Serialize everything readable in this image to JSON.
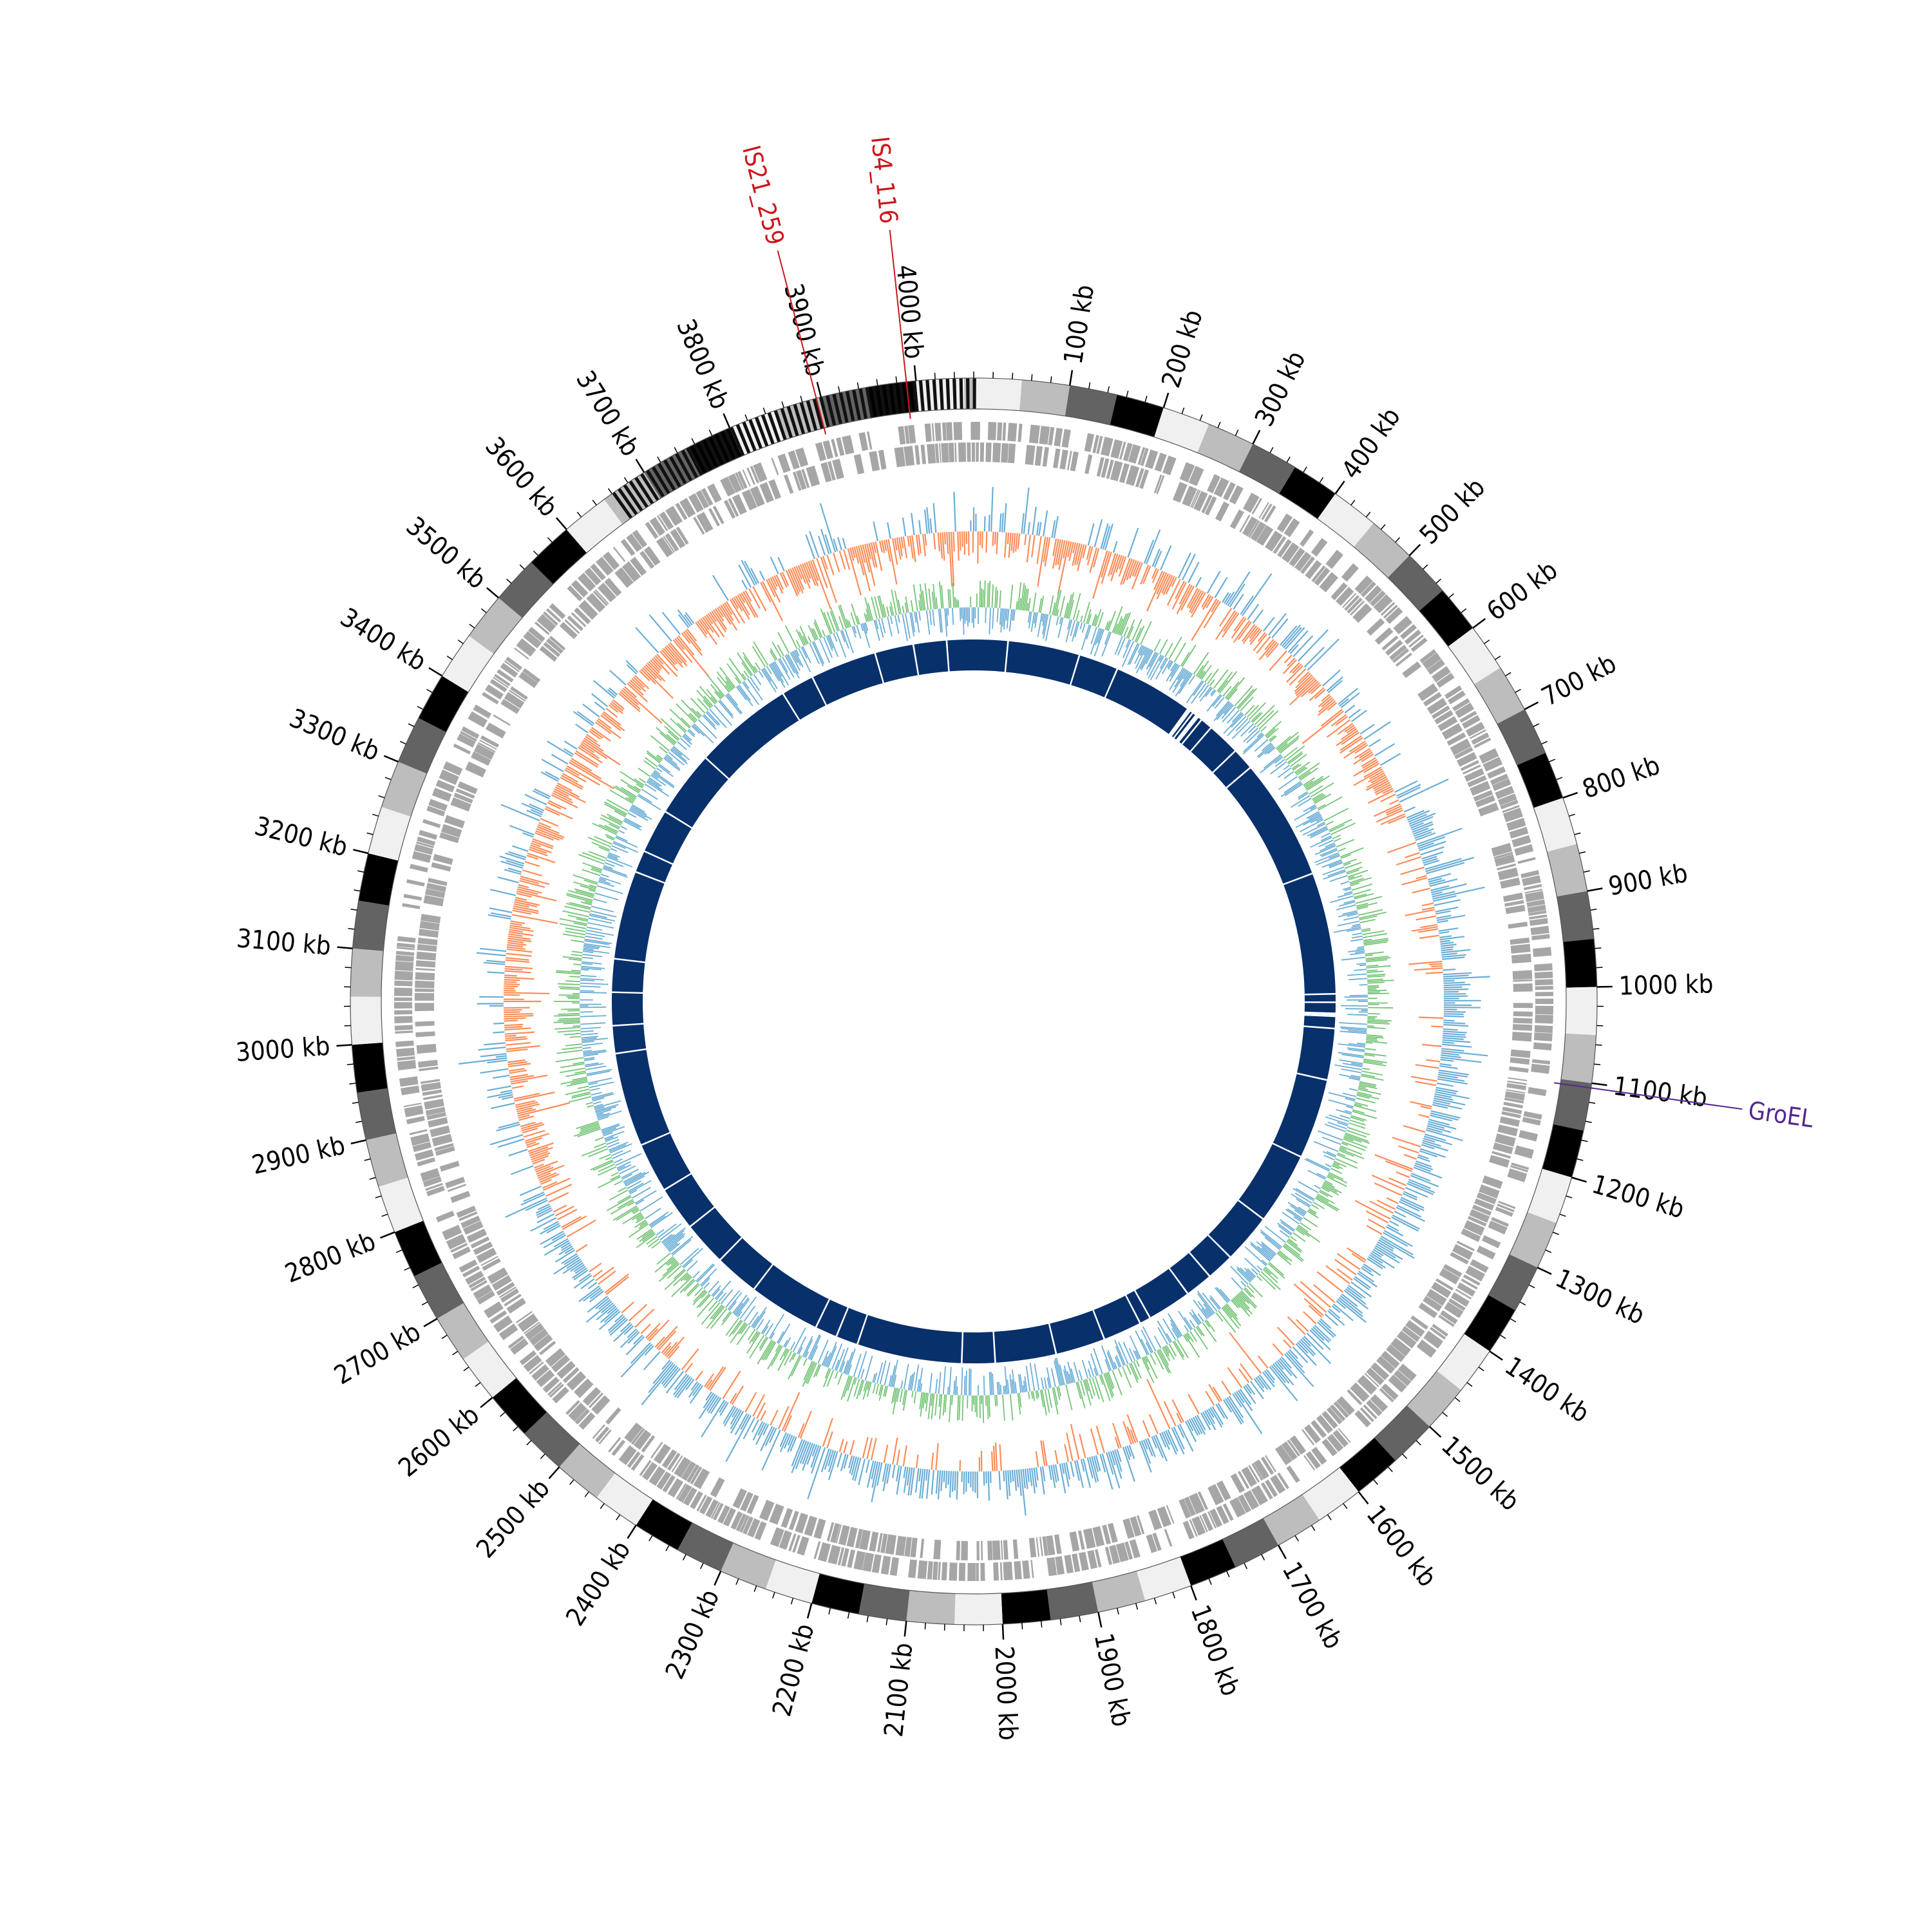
{
  "genome": {
    "length_kb": 4060,
    "tick_unit": "kb",
    "major_tick_step_kb": 100,
    "ideogram_band_kb": 50,
    "ideogram_colors": [
      "#f0f0f0",
      "#bdbdbd",
      "#636363",
      "#000000"
    ]
  },
  "tick_labels": [
    "100 kb",
    "200 kb",
    "300 kb",
    "400 kb",
    "500 kb",
    "600 kb",
    "700 kb",
    "800 kb",
    "900 kb",
    "1000 kb",
    "1100 kb",
    "1200 kb",
    "1300 kb",
    "1400 kb",
    "1500 kb",
    "1600 kb",
    "1700 kb",
    "1800 kb",
    "1900 kb",
    "2000 kb",
    "2100 kb",
    "2200 kb",
    "2300 kb",
    "2400 kb",
    "2500 kb",
    "2600 kb",
    "2700 kb",
    "2800 kb",
    "2900 kb",
    "3000 kb",
    "3100 kb",
    "3200 kb",
    "3300 kb",
    "3400 kb",
    "3500 kb",
    "3600 kb",
    "3700 kb",
    "3800 kb",
    "3900 kb",
    "4000 kb"
  ],
  "annotations": [
    {
      "label": "IS21_259",
      "position_kb": 3895,
      "color": "#cb181d"
    },
    {
      "label": "IS4_116",
      "position_kb": 3990,
      "color": "#cb181d"
    },
    {
      "label": "GroEL",
      "position_kb": 1105,
      "color": "#54278f"
    }
  ],
  "tracks": {
    "genes_color": "#a6a6a6",
    "gc_skew_positive_color": "#fc8d59",
    "gc_skew_negative_color": "#6baed6",
    "gc_content_high_color": "#74c476",
    "gc_content_low_color": "#6baed6",
    "coverage_color": "#08306b"
  }
}
